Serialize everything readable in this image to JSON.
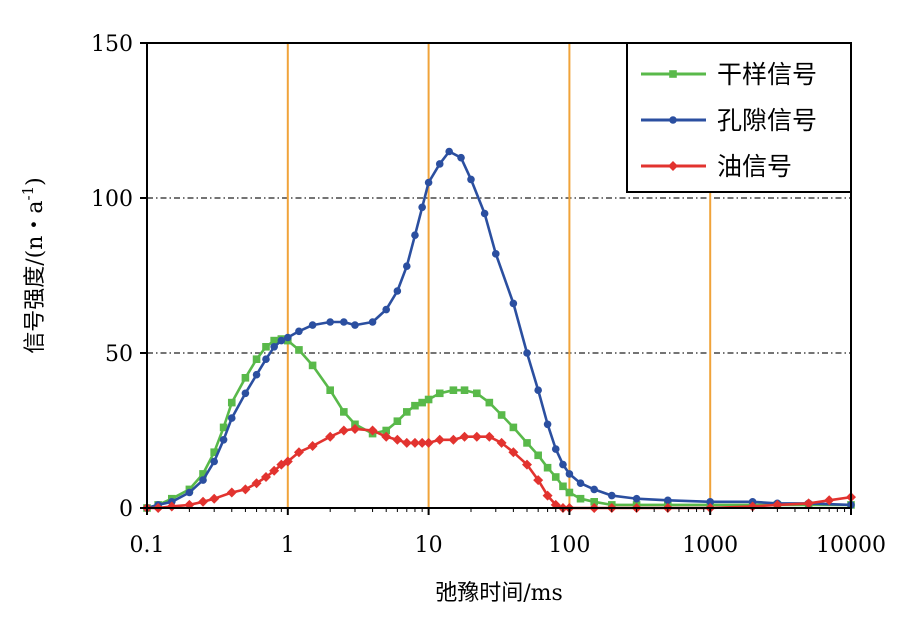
{
  "chart_data": {
    "type": "line",
    "xscale": "log",
    "xlim": [
      0.1,
      10000
    ],
    "ylim": [
      0,
      150
    ],
    "x_ticks": [
      0.1,
      1,
      10,
      100,
      1000,
      10000
    ],
    "x_tick_labels": [
      "0.1",
      "1",
      "10",
      "100",
      "1000",
      "10000"
    ],
    "y_ticks": [
      0,
      50,
      100,
      150
    ],
    "y_tick_labels": [
      "0",
      "50",
      "100",
      "150"
    ],
    "xlabel": "弛豫时间/ms",
    "ylabel_main": "信号强度/(n・a",
    "ylabel_sup": "-1",
    "ylabel_close": ")",
    "legend_position": "top-right",
    "vertical_lines": [
      1,
      10,
      100,
      1000
    ],
    "horizontal_gridlines": [
      50,
      100
    ],
    "series": [
      {
        "name": "干样信号",
        "color": "#59b94a",
        "marker": "square",
        "x": [
          0.1,
          0.12,
          0.15,
          0.2,
          0.25,
          0.3,
          0.35,
          0.4,
          0.5,
          0.6,
          0.7,
          0.8,
          0.9,
          1.0,
          1.2,
          1.5,
          2,
          2.5,
          3,
          4,
          5,
          6,
          7,
          8,
          9,
          10,
          12,
          15,
          18,
          22,
          27,
          33,
          40,
          50,
          60,
          70,
          80,
          90,
          100,
          120,
          150,
          200,
          300,
          500,
          1000,
          2000,
          3000,
          5000,
          10000
        ],
        "y": [
          0,
          1,
          3,
          6,
          11,
          18,
          26,
          34,
          42,
          48,
          52,
          54,
          54.5,
          54,
          51,
          46,
          38,
          31,
          27,
          24,
          25,
          28,
          31,
          33,
          34,
          35,
          37,
          38,
          38,
          37,
          34,
          30,
          26,
          21,
          17,
          13,
          10,
          7,
          5,
          3,
          2,
          1,
          1,
          1,
          1,
          1,
          1,
          1,
          1
        ]
      },
      {
        "name": "孔隙信号",
        "color": "#2b4fa0",
        "marker": "circle",
        "x": [
          0.1,
          0.12,
          0.15,
          0.2,
          0.25,
          0.3,
          0.35,
          0.4,
          0.5,
          0.6,
          0.7,
          0.8,
          0.9,
          1.0,
          1.2,
          1.5,
          2,
          2.5,
          3,
          4,
          5,
          6,
          7,
          8,
          9,
          10,
          12,
          14,
          17,
          20,
          25,
          30,
          40,
          50,
          60,
          70,
          80,
          90,
          100,
          120,
          150,
          200,
          300,
          500,
          1000,
          2000,
          3000,
          5000,
          10000
        ],
        "y": [
          0,
          1,
          2,
          5,
          9,
          15,
          22,
          29,
          37,
          43,
          48,
          52,
          54,
          55,
          57,
          59,
          60,
          60,
          59,
          60,
          64,
          70,
          78,
          88,
          97,
          105,
          111,
          115,
          113,
          106,
          95,
          82,
          66,
          50,
          38,
          27,
          19,
          14,
          11,
          8,
          6,
          4,
          3,
          2.5,
          2,
          2,
          1.5,
          1.5,
          1
        ]
      },
      {
        "name": "油信号",
        "color": "#e2332f",
        "marker": "diamond",
        "x": [
          0.1,
          0.12,
          0.15,
          0.2,
          0.25,
          0.3,
          0.4,
          0.5,
          0.6,
          0.7,
          0.8,
          0.9,
          1.0,
          1.2,
          1.5,
          2,
          2.5,
          3,
          4,
          5,
          6,
          7,
          8,
          9,
          10,
          12,
          15,
          18,
          22,
          27,
          33,
          40,
          50,
          60,
          70,
          80,
          90,
          100,
          150,
          200,
          300,
          500,
          1000,
          2000,
          3000,
          5000,
          7000,
          10000
        ],
        "y": [
          0,
          0,
          0.5,
          1,
          2,
          3,
          5,
          6,
          8,
          10,
          12,
          14,
          15,
          18,
          20,
          23,
          25,
          25.5,
          25,
          23,
          22,
          21,
          21,
          21,
          21,
          22,
          22,
          23,
          23,
          23,
          21,
          18,
          14,
          9,
          4,
          1,
          0,
          0,
          0,
          0,
          0,
          0,
          0,
          0.5,
          1,
          1.5,
          2.5,
          3.5
        ]
      }
    ]
  }
}
